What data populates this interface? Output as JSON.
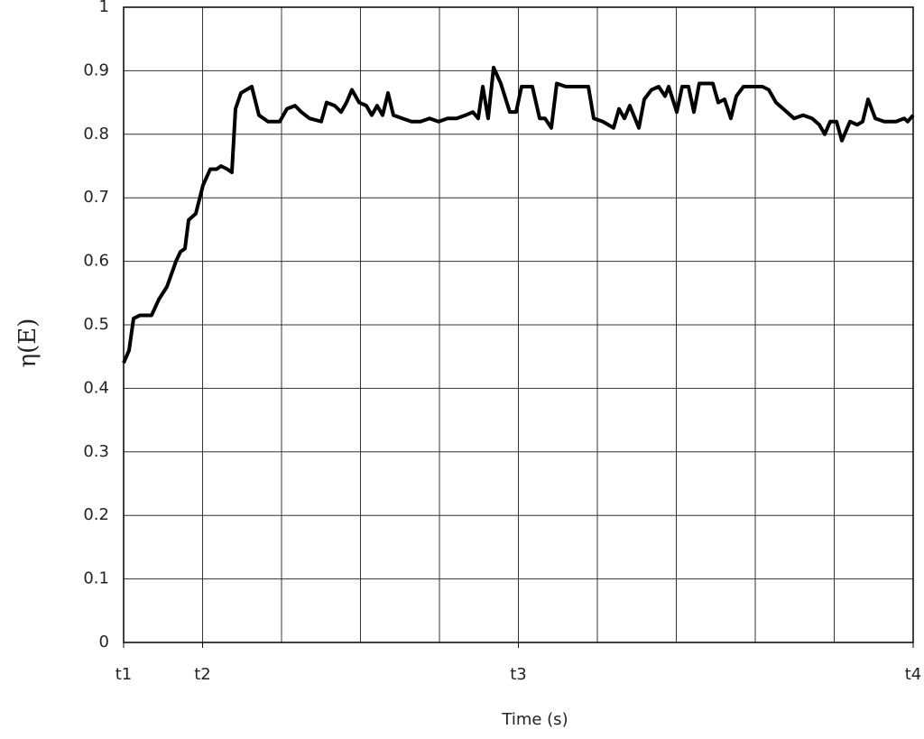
{
  "chart_data": {
    "type": "line",
    "xlabel": "Time (s)",
    "ylabel": "η(E)",
    "xlim": [
      0,
      10
    ],
    "ylim": [
      0,
      1
    ],
    "xticks": [
      {
        "value": 0,
        "label": "t1"
      },
      {
        "value": 1,
        "label": "t2"
      },
      {
        "value": 5,
        "label": "t3"
      },
      {
        "value": 10,
        "label": "t4"
      }
    ],
    "xgrid": [
      0,
      1,
      2,
      3,
      4,
      5,
      6,
      7,
      8,
      9,
      10
    ],
    "yticks": [
      0,
      0.1,
      0.2,
      0.3,
      0.4,
      0.5,
      0.6,
      0.7,
      0.8,
      0.9,
      1
    ],
    "grid": true,
    "series": [
      {
        "color": "#000000",
        "x": [
          0,
          0.069,
          0.126,
          0.206,
          0.354,
          0.446,
          0.549,
          0.663,
          0.72,
          0.777,
          0.823,
          0.914,
          1.006,
          1.097,
          1.177,
          1.234,
          1.314,
          1.371,
          1.417,
          1.486,
          1.623,
          1.714,
          1.829,
          1.909,
          1.977,
          2.069,
          2.171,
          2.251,
          2.354,
          2.503,
          2.571,
          2.674,
          2.754,
          2.823,
          2.891,
          2.983,
          3.074,
          3.143,
          3.211,
          3.28,
          3.349,
          3.417,
          3.531,
          3.646,
          3.76,
          3.874,
          3.989,
          4.103,
          4.217,
          4.331,
          4.423,
          4.491,
          4.549,
          4.617,
          4.686,
          4.777,
          4.891,
          4.971,
          5.04,
          5.177,
          5.269,
          5.337,
          5.417,
          5.486,
          5.6,
          5.749,
          5.886,
          5.954,
          6.069,
          6.206,
          6.274,
          6.343,
          6.411,
          6.526,
          6.594,
          6.686,
          6.777,
          6.857,
          6.903,
          7.006,
          7.074,
          7.154,
          7.223,
          7.291,
          7.463,
          7.531,
          7.611,
          7.691,
          7.76,
          7.851,
          8.091,
          8.171,
          8.263,
          8.4,
          8.491,
          8.606,
          8.72,
          8.811,
          8.88,
          8.949,
          9.029,
          9.097,
          9.2,
          9.291,
          9.36,
          9.429,
          9.52,
          9.634,
          9.783,
          9.886,
          9.931,
          10
        ],
        "values": [
          0.44,
          0.46,
          0.51,
          0.515,
          0.515,
          0.54,
          0.56,
          0.6,
          0.615,
          0.62,
          0.665,
          0.675,
          0.72,
          0.745,
          0.745,
          0.75,
          0.745,
          0.74,
          0.84,
          0.865,
          0.875,
          0.83,
          0.82,
          0.82,
          0.82,
          0.84,
          0.845,
          0.835,
          0.825,
          0.82,
          0.85,
          0.845,
          0.835,
          0.85,
          0.87,
          0.85,
          0.845,
          0.83,
          0.845,
          0.83,
          0.865,
          0.83,
          0.825,
          0.82,
          0.82,
          0.825,
          0.82,
          0.825,
          0.825,
          0.83,
          0.835,
          0.825,
          0.875,
          0.825,
          0.905,
          0.88,
          0.835,
          0.835,
          0.875,
          0.875,
          0.825,
          0.825,
          0.81,
          0.88,
          0.875,
          0.875,
          0.875,
          0.825,
          0.82,
          0.81,
          0.84,
          0.825,
          0.845,
          0.81,
          0.855,
          0.87,
          0.875,
          0.86,
          0.875,
          0.835,
          0.875,
          0.875,
          0.835,
          0.88,
          0.88,
          0.85,
          0.855,
          0.825,
          0.86,
          0.875,
          0.875,
          0.87,
          0.85,
          0.835,
          0.825,
          0.83,
          0.825,
          0.815,
          0.8,
          0.82,
          0.82,
          0.79,
          0.82,
          0.815,
          0.82,
          0.855,
          0.825,
          0.82,
          0.82,
          0.825,
          0.82,
          0.83
        ]
      }
    ]
  }
}
